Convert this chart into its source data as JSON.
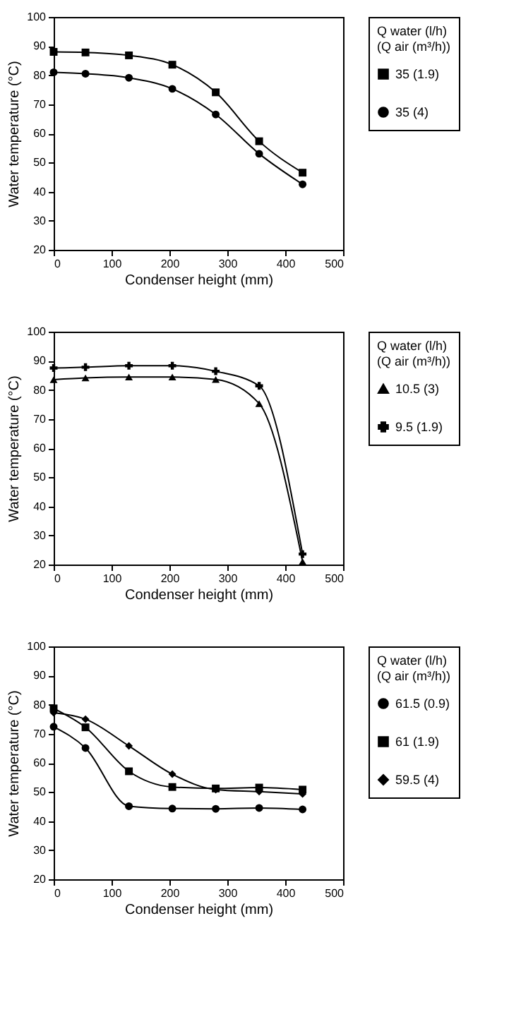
{
  "chart_data": [
    {
      "type": "line",
      "xlabel": "Condenser height  (mm)",
      "ylabel": "Water temperature (°C)",
      "legend_title": "Q water (l/h)\n(Q air (m³/h))",
      "legend": "right",
      "grid": false,
      "xlim": [
        0,
        500
      ],
      "xticks": [
        0,
        100,
        200,
        300,
        400,
        500
      ],
      "ylim": [
        20,
        100
      ],
      "yticks": [
        20,
        30,
        40,
        50,
        60,
        70,
        80,
        90,
        100
      ],
      "x": [
        0,
        55,
        130,
        205,
        280,
        355,
        430
      ],
      "series": [
        {
          "name": "35 (1.9)",
          "color": "#000000",
          "marker": "square",
          "values": [
            88,
            87.8,
            86.8,
            83.6,
            74.1,
            57.3,
            46.5
          ]
        },
        {
          "name": "35 (4)",
          "color": "#000000",
          "marker": "circle",
          "values": [
            81,
            80.5,
            79.1,
            75.3,
            66.5,
            53,
            42.5
          ]
        }
      ]
    },
    {
      "type": "line",
      "xlabel": "Condenser height  (mm)",
      "ylabel": "Water temperature (°C)",
      "legend_title": "Q water (l/h)\n(Q air (m³/h))",
      "legend": "right",
      "grid": false,
      "xlim": [
        0,
        500
      ],
      "xticks": [
        0,
        100,
        200,
        300,
        400,
        500
      ],
      "ylim": [
        20,
        100
      ],
      "yticks": [
        20,
        30,
        40,
        50,
        60,
        70,
        80,
        90,
        100
      ],
      "x": [
        0,
        55,
        130,
        205,
        280,
        355,
        430
      ],
      "series": [
        {
          "name": "10.5 (3)",
          "color": "#000000",
          "marker": "triangle",
          "values": [
            83.5,
            84.1,
            84.4,
            84.4,
            83.6,
            75.3,
            21
          ]
        },
        {
          "name": "9.5 (1.9)",
          "color": "#000000",
          "marker": "cross",
          "values": [
            87.5,
            87.8,
            88.3,
            88.3,
            86.4,
            81.4,
            23.6
          ]
        }
      ]
    },
    {
      "type": "line",
      "xlabel": "Condenser height  (mm)",
      "ylabel": "Water temperature (°C)",
      "legend_title": "Q water (l/h)\n(Q air (m³/h))",
      "legend": "right",
      "grid": false,
      "xlim": [
        0,
        500
      ],
      "xticks": [
        0,
        100,
        200,
        300,
        400,
        500
      ],
      "ylim": [
        20,
        100
      ],
      "yticks": [
        20,
        30,
        40,
        50,
        60,
        70,
        80,
        90,
        100
      ],
      "x": [
        0,
        55,
        130,
        205,
        280,
        355,
        430
      ],
      "series": [
        {
          "name": "61.5 (0.9)",
          "color": "#000000",
          "marker": "circle",
          "values": [
            72.4,
            65.1,
            45.1,
            44.3,
            44.2,
            44.5,
            44.0
          ]
        },
        {
          "name": "61 (1.9)",
          "color": "#000000",
          "marker": "square",
          "values": [
            78.7,
            72.2,
            57.1,
            51.7,
            51.2,
            51.5,
            50.8
          ]
        },
        {
          "name": "59.5 (4)",
          "color": "#000000",
          "marker": "diamond",
          "values": [
            77.2,
            75,
            65.8,
            56.1,
            50.8,
            50.1,
            49.3
          ]
        }
      ]
    }
  ]
}
